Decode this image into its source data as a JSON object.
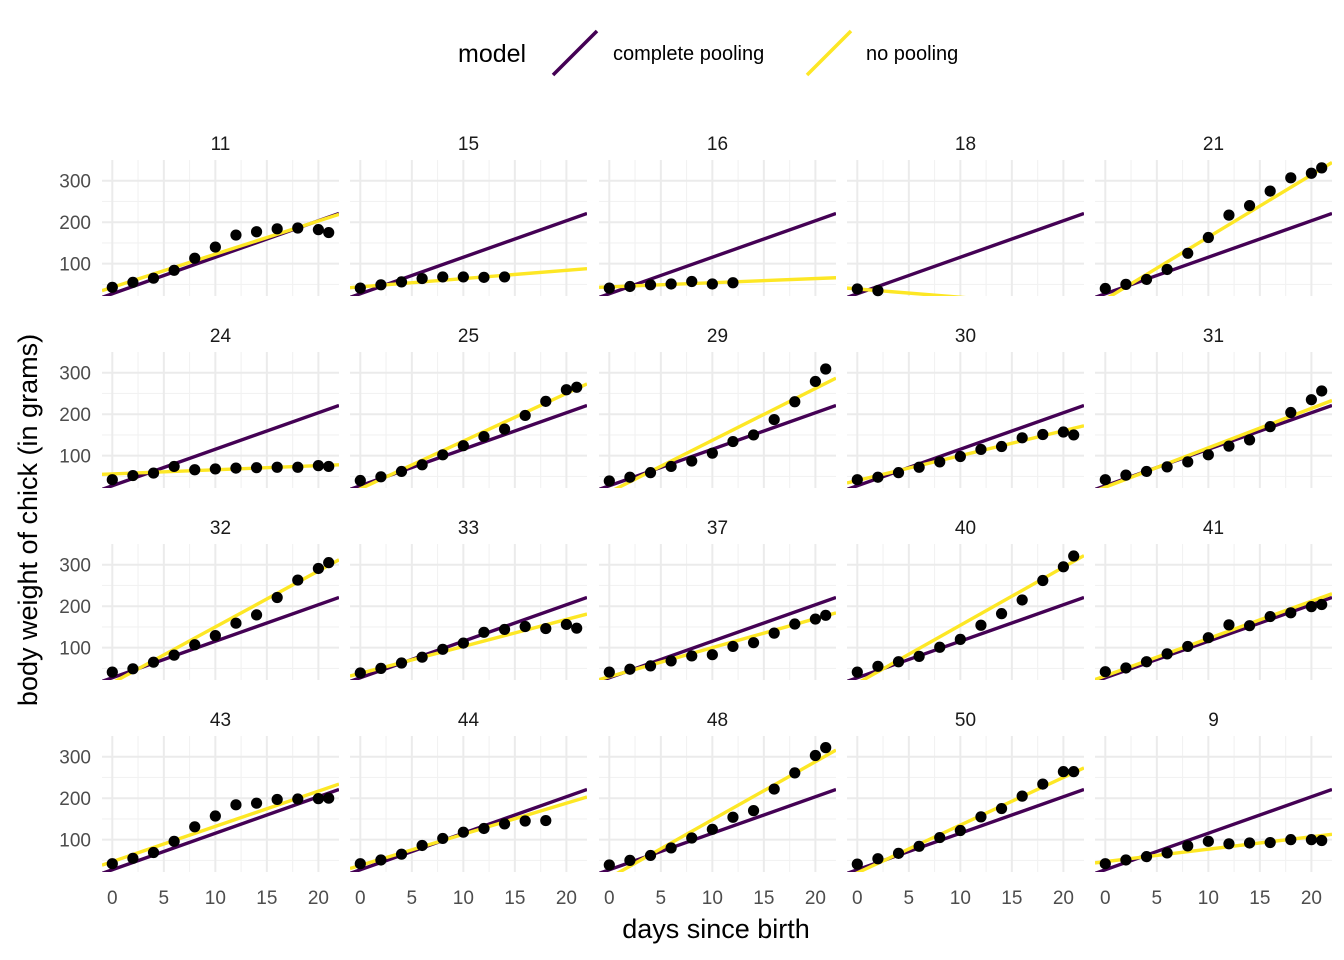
{
  "chart_data": {
    "type": "scatter",
    "facet_by": "chick",
    "xlabel": "days since birth",
    "ylabel": "body weight of chick (in grams)",
    "xlim": [
      -1,
      22
    ],
    "ylim": [
      22,
      350
    ],
    "x_ticks": [
      0,
      5,
      10,
      15,
      20
    ],
    "y_ticks": [
      100,
      200,
      300
    ],
    "legend": {
      "title": "model",
      "position": "top",
      "entries": [
        {
          "label": "complete pooling",
          "color": "#440154"
        },
        {
          "label": "no pooling",
          "color": "#FDE725"
        }
      ]
    },
    "complete_pooling": {
      "intercept": 27.5,
      "slope": 8.8
    },
    "point_color": "#000000",
    "panels": [
      {
        "chick": "11",
        "no_pooling": {
          "intercept": 43,
          "slope": 8.0
        },
        "points": [
          [
            0,
            43
          ],
          [
            2,
            55
          ],
          [
            4,
            65
          ],
          [
            6,
            84
          ],
          [
            8,
            113
          ],
          [
            10,
            140
          ],
          [
            12,
            169
          ],
          [
            14,
            177
          ],
          [
            16,
            184
          ],
          [
            18,
            186
          ],
          [
            20,
            182
          ],
          [
            21,
            175
          ]
        ]
      },
      {
        "chick": "15",
        "no_pooling": {
          "intercept": 44,
          "slope": 2.0
        },
        "points": [
          [
            0,
            41
          ],
          [
            2,
            49
          ],
          [
            4,
            56
          ],
          [
            6,
            64
          ],
          [
            8,
            68
          ],
          [
            10,
            68
          ],
          [
            12,
            67
          ],
          [
            14,
            68
          ]
        ]
      },
      {
        "chick": "16",
        "no_pooling": {
          "intercept": 44,
          "slope": 1.0
        },
        "points": [
          [
            0,
            41
          ],
          [
            2,
            45
          ],
          [
            4,
            49
          ],
          [
            6,
            51
          ],
          [
            8,
            57
          ],
          [
            10,
            51
          ],
          [
            12,
            54
          ]
        ]
      },
      {
        "chick": "18",
        "no_pooling": {
          "intercept": 39,
          "slope": -2.0
        },
        "points": [
          [
            0,
            39
          ],
          [
            2,
            35
          ]
        ]
      },
      {
        "chick": "21",
        "no_pooling": {
          "intercept": 14,
          "slope": 15.0
        },
        "points": [
          [
            0,
            40
          ],
          [
            2,
            50
          ],
          [
            4,
            62
          ],
          [
            6,
            86
          ],
          [
            8,
            125
          ],
          [
            10,
            163
          ],
          [
            12,
            217
          ],
          [
            14,
            240
          ],
          [
            16,
            275
          ],
          [
            18,
            307
          ],
          [
            20,
            318
          ],
          [
            21,
            331
          ]
        ]
      },
      {
        "chick": "24",
        "no_pooling": {
          "intercept": 56,
          "slope": 1.0
        },
        "points": [
          [
            0,
            42
          ],
          [
            2,
            52
          ],
          [
            4,
            58
          ],
          [
            6,
            74
          ],
          [
            8,
            66
          ],
          [
            10,
            68
          ],
          [
            12,
            70
          ],
          [
            14,
            71
          ],
          [
            16,
            72
          ],
          [
            18,
            72
          ],
          [
            20,
            76
          ],
          [
            21,
            74
          ]
        ]
      },
      {
        "chick": "25",
        "no_pooling": {
          "intercept": 20,
          "slope": 11.5
        },
        "points": [
          [
            0,
            40
          ],
          [
            2,
            49
          ],
          [
            4,
            62
          ],
          [
            6,
            78
          ],
          [
            8,
            102
          ],
          [
            10,
            124
          ],
          [
            12,
            146
          ],
          [
            14,
            164
          ],
          [
            16,
            197
          ],
          [
            18,
            231
          ],
          [
            20,
            259
          ],
          [
            21,
            265
          ]
        ]
      },
      {
        "chick": "29",
        "no_pooling": {
          "intercept": 12,
          "slope": 12.5
        },
        "points": [
          [
            0,
            39
          ],
          [
            2,
            48
          ],
          [
            4,
            59
          ],
          [
            6,
            74
          ],
          [
            8,
            87
          ],
          [
            10,
            106
          ],
          [
            12,
            134
          ],
          [
            14,
            150
          ],
          [
            16,
            187
          ],
          [
            18,
            230
          ],
          [
            20,
            279
          ],
          [
            21,
            309
          ]
        ]
      },
      {
        "chick": "30",
        "no_pooling": {
          "intercept": 40,
          "slope": 6.0
        },
        "points": [
          [
            0,
            42
          ],
          [
            2,
            48
          ],
          [
            4,
            59
          ],
          [
            6,
            72
          ],
          [
            8,
            85
          ],
          [
            10,
            98
          ],
          [
            12,
            115
          ],
          [
            14,
            122
          ],
          [
            16,
            143
          ],
          [
            18,
            151
          ],
          [
            20,
            157
          ],
          [
            21,
            150
          ]
        ]
      },
      {
        "chick": "31",
        "no_pooling": {
          "intercept": 24,
          "slope": 9.5
        },
        "points": [
          [
            0,
            42
          ],
          [
            2,
            53
          ],
          [
            4,
            62
          ],
          [
            6,
            73
          ],
          [
            8,
            85
          ],
          [
            10,
            102
          ],
          [
            12,
            123
          ],
          [
            14,
            138
          ],
          [
            16,
            170
          ],
          [
            18,
            204
          ],
          [
            20,
            235
          ],
          [
            21,
            256
          ]
        ]
      },
      {
        "chick": "32",
        "no_pooling": {
          "intercept": 15,
          "slope": 13.5
        },
        "points": [
          [
            0,
            41
          ],
          [
            2,
            49
          ],
          [
            4,
            65
          ],
          [
            6,
            82
          ],
          [
            8,
            107
          ],
          [
            10,
            129
          ],
          [
            12,
            159
          ],
          [
            14,
            179
          ],
          [
            16,
            221
          ],
          [
            18,
            263
          ],
          [
            20,
            291
          ],
          [
            21,
            305
          ]
        ]
      },
      {
        "chick": "33",
        "no_pooling": {
          "intercept": 38,
          "slope": 6.5
        },
        "points": [
          [
            0,
            39
          ],
          [
            2,
            50
          ],
          [
            4,
            63
          ],
          [
            6,
            77
          ],
          [
            8,
            96
          ],
          [
            10,
            111
          ],
          [
            12,
            137
          ],
          [
            14,
            144
          ],
          [
            16,
            151
          ],
          [
            18,
            146
          ],
          [
            20,
            156
          ],
          [
            21,
            147
          ]
        ]
      },
      {
        "chick": "37",
        "no_pooling": {
          "intercept": 30,
          "slope": 7.0
        },
        "points": [
          [
            0,
            41
          ],
          [
            2,
            48
          ],
          [
            4,
            56
          ],
          [
            6,
            68
          ],
          [
            8,
            80
          ],
          [
            10,
            83
          ],
          [
            12,
            103
          ],
          [
            14,
            112
          ],
          [
            16,
            135
          ],
          [
            18,
            157
          ],
          [
            20,
            169
          ],
          [
            21,
            178
          ]
        ]
      },
      {
        "chick": "40",
        "no_pooling": {
          "intercept": 14,
          "slope": 14.0
        },
        "points": [
          [
            0,
            41
          ],
          [
            2,
            55
          ],
          [
            4,
            66
          ],
          [
            6,
            79
          ],
          [
            8,
            101
          ],
          [
            10,
            120
          ],
          [
            12,
            154
          ],
          [
            14,
            182
          ],
          [
            16,
            215
          ],
          [
            18,
            262
          ],
          [
            20,
            295
          ],
          [
            21,
            321
          ]
        ]
      },
      {
        "chick": "41",
        "no_pooling": {
          "intercept": 32,
          "slope": 9.0
        },
        "points": [
          [
            0,
            42
          ],
          [
            2,
            51
          ],
          [
            4,
            66
          ],
          [
            6,
            85
          ],
          [
            8,
            103
          ],
          [
            10,
            124
          ],
          [
            12,
            155
          ],
          [
            14,
            153
          ],
          [
            16,
            175
          ],
          [
            18,
            184
          ],
          [
            20,
            199
          ],
          [
            21,
            204
          ]
        ]
      },
      {
        "chick": "43",
        "no_pooling": {
          "intercept": 47,
          "slope": 8.5
        },
        "points": [
          [
            0,
            42
          ],
          [
            2,
            55
          ],
          [
            4,
            69
          ],
          [
            6,
            96
          ],
          [
            8,
            131
          ],
          [
            10,
            157
          ],
          [
            12,
            184
          ],
          [
            14,
            188
          ],
          [
            16,
            197
          ],
          [
            18,
            198
          ],
          [
            20,
            199
          ],
          [
            21,
            200
          ]
        ]
      },
      {
        "chick": "44",
        "no_pooling": {
          "intercept": 38,
          "slope": 7.5
        },
        "points": [
          [
            0,
            42
          ],
          [
            2,
            51
          ],
          [
            4,
            65
          ],
          [
            6,
            86
          ],
          [
            8,
            103
          ],
          [
            10,
            118
          ],
          [
            12,
            127
          ],
          [
            14,
            138
          ],
          [
            16,
            145
          ],
          [
            18,
            146
          ]
        ]
      },
      {
        "chick": "48",
        "no_pooling": {
          "intercept": 8,
          "slope": 14.0
        },
        "points": [
          [
            0,
            39
          ],
          [
            2,
            50
          ],
          [
            4,
            62
          ],
          [
            6,
            80
          ],
          [
            8,
            104
          ],
          [
            10,
            125
          ],
          [
            12,
            154
          ],
          [
            14,
            170
          ],
          [
            16,
            222
          ],
          [
            18,
            261
          ],
          [
            20,
            303
          ],
          [
            21,
            322
          ]
        ]
      },
      {
        "chick": "50",
        "no_pooling": {
          "intercept": 20,
          "slope": 11.5
        },
        "points": [
          [
            0,
            41
          ],
          [
            2,
            54
          ],
          [
            4,
            67
          ],
          [
            6,
            84
          ],
          [
            8,
            105
          ],
          [
            10,
            122
          ],
          [
            12,
            155
          ],
          [
            14,
            175
          ],
          [
            16,
            205
          ],
          [
            18,
            234
          ],
          [
            20,
            264
          ],
          [
            21,
            264
          ]
        ]
      },
      {
        "chick": "9",
        "no_pooling": {
          "intercept": 47,
          "slope": 3.0
        },
        "points": [
          [
            0,
            42
          ],
          [
            2,
            51
          ],
          [
            4,
            59
          ],
          [
            6,
            68
          ],
          [
            8,
            85
          ],
          [
            10,
            96
          ],
          [
            12,
            90
          ],
          [
            14,
            92
          ],
          [
            16,
            93
          ],
          [
            18,
            100
          ],
          [
            20,
            100
          ],
          [
            21,
            98
          ]
        ]
      }
    ]
  }
}
